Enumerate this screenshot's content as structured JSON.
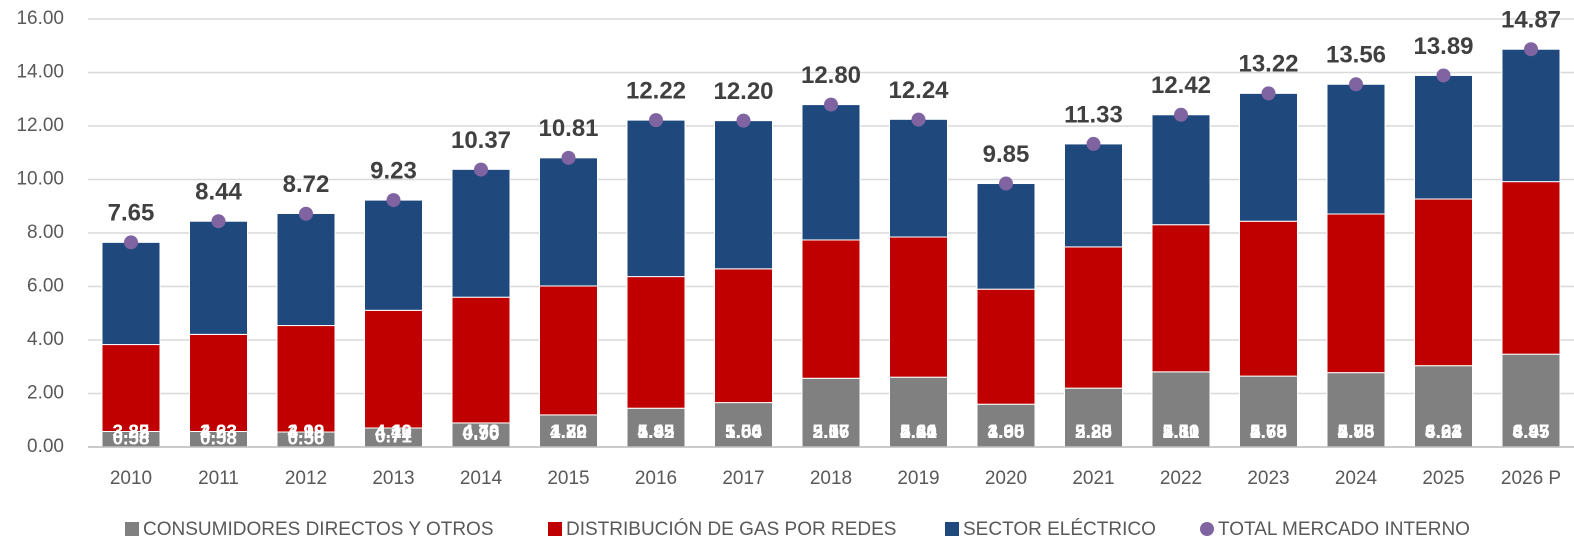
{
  "chart_data": {
    "type": "bar",
    "stacked": true,
    "categories": [
      "2010",
      "2011",
      "2012",
      "2013",
      "2014",
      "2015",
      "2016",
      "2017",
      "2018",
      "2019",
      "2020",
      "2021",
      "2022",
      "2023",
      "2024",
      "2025",
      "2026 P"
    ],
    "series": [
      {
        "name": "CONSUMIDORES DIRECTOS Y OTROS",
        "color": "#808080",
        "values": [
          0.58,
          0.58,
          0.56,
          0.71,
          0.9,
          1.2,
          1.45,
          1.66,
          2.57,
          2.61,
          1.6,
          2.2,
          2.81,
          2.65,
          2.78,
          3.04,
          3.47
        ],
        "value_labels": [
          "0.58",
          "0.58",
          "0.56",
          "0.71",
          "0.90",
          "1.20",
          "1.45",
          "1.66",
          "2.57",
          "2.61",
          "1.60",
          "2.20",
          "2.81",
          "2.65",
          "2.78",
          "3.04",
          "3.47"
        ]
      },
      {
        "name": "DISTRIBUCIÓN DE GAS POR REDES",
        "color": "#c00000",
        "values": [
          3.25,
          3.63,
          3.98,
          4.4,
          4.7,
          4.82,
          4.92,
          5.0,
          5.17,
          5.24,
          4.3,
          5.28,
          5.5,
          5.79,
          5.93,
          6.23,
          6.45
        ],
        "value_labels": [
          "3.25",
          "3.63",
          "3.98",
          "4.40",
          "4.70",
          "4.82",
          "4.92",
          "5.00",
          "5.17",
          "5.24",
          "4.30",
          "5.28",
          "5.50",
          "5.79",
          "5.93",
          "6.23",
          "6.45"
        ]
      },
      {
        "name": "SECTOR ELÉCTRICO",
        "color": "#1f497d",
        "values": [
          3.82,
          4.23,
          4.19,
          4.12,
          4.78,
          4.79,
          5.85,
          5.54,
          5.06,
          4.4,
          3.95,
          3.85,
          4.11,
          4.78,
          4.85,
          4.62,
          4.95
        ],
        "value_labels": [
          "3.82",
          "4.23",
          "4.19",
          "4.12",
          "4.78",
          "4.79",
          "5.85",
          "5.54",
          "5.06",
          "4.40",
          "3.95",
          "3.85",
          "4.11",
          "4.78",
          "4.85",
          "4.62",
          "4.95"
        ]
      },
      {
        "name": "TOTAL MERCADO INTERNO",
        "color": "#8064a2",
        "type": "scatter",
        "values": [
          7.65,
          8.44,
          8.72,
          9.23,
          10.37,
          10.81,
          12.22,
          12.2,
          12.8,
          12.24,
          9.85,
          11.33,
          12.42,
          13.22,
          13.56,
          13.89,
          14.87
        ],
        "value_labels": [
          "7.65",
          "8.44",
          "8.72",
          "9.23",
          "10.37",
          "10.81",
          "12.22",
          "12.20",
          "12.80",
          "12.24",
          "9.85",
          "11.33",
          "12.42",
          "13.22",
          "13.56",
          "13.89",
          "14.87"
        ]
      }
    ],
    "ylim": [
      0,
      16
    ],
    "yticks": [
      {
        "value": 0,
        "label": "0.00"
      },
      {
        "value": 2,
        "label": "2.00"
      },
      {
        "value": 4,
        "label": "4.00"
      },
      {
        "value": 6,
        "label": "6.00"
      },
      {
        "value": 8,
        "label": "8.00"
      },
      {
        "value": 10,
        "label": "10.00"
      },
      {
        "value": 12,
        "label": "12.00"
      },
      {
        "value": 14,
        "label": "14.00"
      },
      {
        "value": 16,
        "label": "16.00"
      }
    ],
    "grid": true
  }
}
